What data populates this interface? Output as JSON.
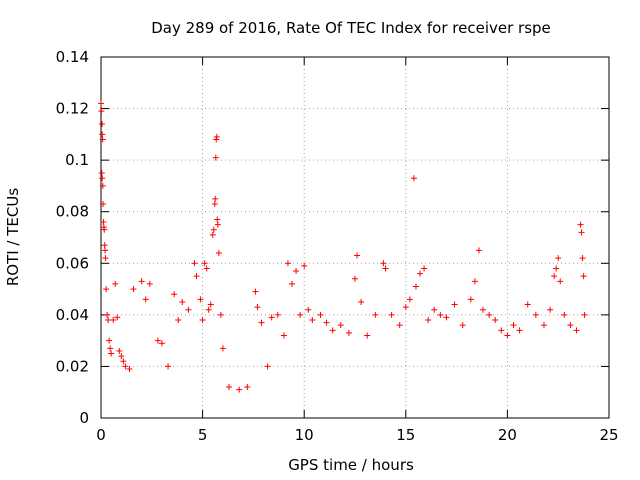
{
  "chart_data": {
    "type": "scatter",
    "title": "Day 289 of 2016, Rate Of TEC Index for receiver rspe",
    "xlabel": "GPS time / hours",
    "ylabel": "ROTI / TECUs",
    "xlim": [
      0,
      25
    ],
    "ylim": [
      0,
      0.14
    ],
    "x_ticks": [
      0,
      5,
      10,
      15,
      20,
      25
    ],
    "y_ticks": [
      0,
      0.02,
      0.04,
      0.06,
      0.08,
      0.1,
      0.12,
      0.14
    ],
    "x_tick_labels": [
      "0",
      "5",
      "10",
      "15",
      "20",
      "25"
    ],
    "y_tick_labels": [
      "0",
      "0.02",
      "0.04",
      "0.06",
      "0.08",
      "0.1",
      "0.12",
      "0.14"
    ],
    "grid": true,
    "marker": "+",
    "color": "#ff0000",
    "series": [
      {
        "name": "ROTI",
        "points": [
          [
            0.0,
            0.122
          ],
          [
            0.02,
            0.119
          ],
          [
            0.05,
            0.114
          ],
          [
            0.06,
            0.11
          ],
          [
            0.08,
            0.108
          ],
          [
            0.04,
            0.095
          ],
          [
            0.06,
            0.093
          ],
          [
            0.09,
            0.09
          ],
          [
            0.1,
            0.083
          ],
          [
            0.12,
            0.076
          ],
          [
            0.14,
            0.074
          ],
          [
            0.16,
            0.073
          ],
          [
            0.18,
            0.067
          ],
          [
            0.2,
            0.065
          ],
          [
            0.22,
            0.062
          ],
          [
            0.25,
            0.05
          ],
          [
            0.3,
            0.04
          ],
          [
            0.35,
            0.038
          ],
          [
            0.4,
            0.03
          ],
          [
            0.45,
            0.027
          ],
          [
            0.5,
            0.025
          ],
          [
            0.6,
            0.038
          ],
          [
            0.7,
            0.052
          ],
          [
            0.8,
            0.039
          ],
          [
            0.9,
            0.026
          ],
          [
            1.0,
            0.024
          ],
          [
            1.1,
            0.022
          ],
          [
            1.2,
            0.02
          ],
          [
            1.4,
            0.019
          ],
          [
            1.6,
            0.05
          ],
          [
            2.0,
            0.053
          ],
          [
            2.2,
            0.046
          ],
          [
            2.4,
            0.052
          ],
          [
            2.8,
            0.03
          ],
          [
            3.0,
            0.029
          ],
          [
            3.3,
            0.02
          ],
          [
            3.6,
            0.048
          ],
          [
            3.8,
            0.038
          ],
          [
            4.0,
            0.045
          ],
          [
            4.3,
            0.042
          ],
          [
            4.6,
            0.06
          ],
          [
            4.7,
            0.055
          ],
          [
            4.9,
            0.046
          ],
          [
            5.0,
            0.038
          ],
          [
            5.1,
            0.06
          ],
          [
            5.2,
            0.058
          ],
          [
            5.3,
            0.042
          ],
          [
            5.4,
            0.044
          ],
          [
            5.5,
            0.071
          ],
          [
            5.55,
            0.073
          ],
          [
            5.6,
            0.083
          ],
          [
            5.62,
            0.085
          ],
          [
            5.65,
            0.101
          ],
          [
            5.67,
            0.108
          ],
          [
            5.7,
            0.109
          ],
          [
            5.72,
            0.077
          ],
          [
            5.75,
            0.075
          ],
          [
            5.8,
            0.064
          ],
          [
            5.9,
            0.04
          ],
          [
            6.0,
            0.027
          ],
          [
            6.3,
            0.012
          ],
          [
            6.8,
            0.011
          ],
          [
            7.2,
            0.012
          ],
          [
            7.6,
            0.049
          ],
          [
            7.7,
            0.043
          ],
          [
            7.9,
            0.037
          ],
          [
            8.2,
            0.02
          ],
          [
            8.4,
            0.039
          ],
          [
            8.7,
            0.04
          ],
          [
            9.0,
            0.032
          ],
          [
            9.2,
            0.06
          ],
          [
            9.4,
            0.052
          ],
          [
            9.6,
            0.057
          ],
          [
            9.8,
            0.04
          ],
          [
            10.0,
            0.059
          ],
          [
            10.2,
            0.042
          ],
          [
            10.4,
            0.038
          ],
          [
            10.8,
            0.04
          ],
          [
            11.1,
            0.037
          ],
          [
            11.4,
            0.034
          ],
          [
            11.8,
            0.036
          ],
          [
            12.2,
            0.033
          ],
          [
            12.5,
            0.054
          ],
          [
            12.6,
            0.063
          ],
          [
            12.8,
            0.045
          ],
          [
            13.1,
            0.032
          ],
          [
            13.5,
            0.04
          ],
          [
            13.9,
            0.06
          ],
          [
            14.0,
            0.058
          ],
          [
            14.3,
            0.04
          ],
          [
            14.7,
            0.036
          ],
          [
            15.0,
            0.043
          ],
          [
            15.2,
            0.046
          ],
          [
            15.4,
            0.093
          ],
          [
            15.5,
            0.051
          ],
          [
            15.7,
            0.056
          ],
          [
            15.9,
            0.058
          ],
          [
            16.1,
            0.038
          ],
          [
            16.4,
            0.042
          ],
          [
            16.7,
            0.04
          ],
          [
            17.0,
            0.039
          ],
          [
            17.4,
            0.044
          ],
          [
            17.8,
            0.036
          ],
          [
            18.2,
            0.046
          ],
          [
            18.4,
            0.053
          ],
          [
            18.6,
            0.065
          ],
          [
            18.8,
            0.042
          ],
          [
            19.1,
            0.04
          ],
          [
            19.4,
            0.038
          ],
          [
            19.7,
            0.034
          ],
          [
            20.0,
            0.032
          ],
          [
            20.3,
            0.036
          ],
          [
            20.6,
            0.034
          ],
          [
            21.0,
            0.044
          ],
          [
            21.4,
            0.04
          ],
          [
            21.8,
            0.036
          ],
          [
            22.1,
            0.042
          ],
          [
            22.3,
            0.055
          ],
          [
            22.4,
            0.058
          ],
          [
            22.5,
            0.062
          ],
          [
            22.6,
            0.053
          ],
          [
            22.8,
            0.04
          ],
          [
            23.1,
            0.036
          ],
          [
            23.4,
            0.034
          ],
          [
            23.6,
            0.075
          ],
          [
            23.65,
            0.072
          ],
          [
            23.7,
            0.062
          ],
          [
            23.75,
            0.055
          ],
          [
            23.8,
            0.04
          ]
        ]
      }
    ]
  }
}
